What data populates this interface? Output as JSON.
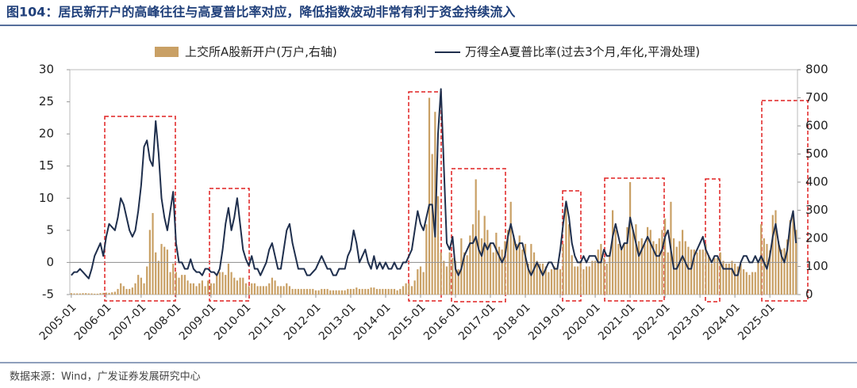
{
  "chart_data": {
    "type": "combo",
    "title": "图104：居民新开户的高峰往往与高夏普比率对应，降低指数波动非常有利于资金持续流入",
    "categories": [
      "2005-01",
      null,
      null,
      null,
      null,
      null,
      null,
      null,
      null,
      null,
      null,
      null,
      "2006-01",
      null,
      null,
      null,
      null,
      null,
      null,
      null,
      null,
      null,
      null,
      null,
      "2007-01",
      null,
      null,
      null,
      null,
      null,
      null,
      null,
      null,
      null,
      null,
      null,
      "2008-01",
      null,
      null,
      null,
      null,
      null,
      null,
      null,
      null,
      null,
      null,
      null,
      "2009-01",
      null,
      null,
      null,
      null,
      null,
      null,
      null,
      null,
      null,
      null,
      null,
      "2010-01",
      null,
      null,
      null,
      null,
      null,
      null,
      null,
      null,
      null,
      null,
      null,
      "2011-01",
      null,
      null,
      null,
      null,
      null,
      null,
      null,
      null,
      null,
      null,
      null,
      "2012-01",
      null,
      null,
      null,
      null,
      null,
      null,
      null,
      null,
      null,
      null,
      null,
      "2013-01",
      null,
      null,
      null,
      null,
      null,
      null,
      null,
      null,
      null,
      null,
      null,
      "2014-01",
      null,
      null,
      null,
      null,
      null,
      null,
      null,
      null,
      null,
      null,
      null,
      "2015-01",
      null,
      null,
      null,
      null,
      null,
      null,
      null,
      null,
      null,
      null,
      null,
      "2016-01",
      null,
      null,
      null,
      null,
      null,
      null,
      null,
      null,
      null,
      null,
      null,
      "2017-01",
      null,
      null,
      null,
      null,
      null,
      null,
      null,
      null,
      null,
      null,
      null,
      "2018-01",
      null,
      null,
      null,
      null,
      null,
      null,
      null,
      null,
      null,
      null,
      null,
      "2019-01",
      null,
      null,
      null,
      null,
      null,
      null,
      null,
      null,
      null,
      null,
      null,
      "2020-01",
      null,
      null,
      null,
      null,
      null,
      null,
      null,
      null,
      null,
      null,
      null,
      "2021-01",
      null,
      null,
      null,
      null,
      null,
      null,
      null,
      null,
      null,
      null,
      null,
      "2022-01",
      null,
      null,
      null,
      null,
      null,
      null,
      null,
      null,
      null,
      null,
      null,
      "2023-01",
      null,
      null,
      null,
      null,
      null,
      null,
      null,
      null,
      null,
      null,
      null,
      "2024-01",
      null,
      null,
      null,
      null,
      null,
      null,
      null,
      null,
      null,
      null,
      null,
      "2025-01",
      null,
      null,
      null,
      null,
      null,
      null,
      null,
      null,
      null
    ],
    "series": [
      {
        "name": "上交所A股新开户(万户,右轴)",
        "type": "bar",
        "axis": "y2",
        "color": "#c9a065",
        "values": [
          5,
          4,
          4,
          4,
          5,
          5,
          4,
          4,
          3,
          3,
          5,
          6,
          7,
          6,
          8,
          10,
          20,
          40,
          30,
          20,
          20,
          25,
          40,
          70,
          60,
          40,
          100,
          230,
          290,
          150,
          120,
          180,
          170,
          160,
          80,
          110,
          80,
          60,
          70,
          70,
          50,
          40,
          40,
          30,
          40,
          50,
          30,
          50,
          40,
          40,
          70,
          80,
          80,
          70,
          110,
          80,
          60,
          50,
          60,
          60,
          40,
          30,
          40,
          40,
          30,
          30,
          30,
          30,
          40,
          60,
          50,
          30,
          30,
          30,
          40,
          30,
          20,
          20,
          20,
          20,
          20,
          20,
          20,
          20,
          15,
          15,
          20,
          20,
          20,
          15,
          15,
          15,
          15,
          15,
          15,
          20,
          20,
          20,
          25,
          20,
          20,
          20,
          20,
          25,
          25,
          20,
          20,
          20,
          20,
          20,
          20,
          20,
          15,
          20,
          30,
          40,
          40,
          30,
          50,
          90,
          100,
          80,
          250,
          700,
          500,
          650,
          350,
          150,
          120,
          100,
          150,
          130,
          120,
          90,
          200,
          150,
          140,
          210,
          250,
          410,
          300,
          200,
          280,
          230,
          180,
          150,
          220,
          170,
          160,
          190,
          230,
          330,
          210,
          180,
          210,
          160,
          180,
          110,
          180,
          150,
          120,
          110,
          110,
          100,
          80,
          90,
          100,
          90,
          90,
          180,
          330,
          250,
          140,
          100,
          100,
          120,
          90,
          100,
          100,
          120,
          120,
          160,
          180,
          130,
          110,
          150,
          300,
          230,
          180,
          160,
          180,
          240,
          400,
          230,
          250,
          190,
          200,
          180,
          240,
          230,
          190,
          180,
          200,
          230,
          270,
          150,
          330,
          200,
          170,
          190,
          230,
          190,
          170,
          160,
          160,
          150,
          160,
          160,
          180,
          140,
          110,
          130,
          130,
          150,
          120,
          110,
          110,
          120,
          110,
          100,
          110,
          90,
          80,
          70,
          80,
          80,
          120,
          250,
          200,
          180,
          157,
          283,
          300,
          190,
          160,
          165,
          196,
          265,
          290,
          230
        ]
      },
      {
        "name": "万得全A夏普比率(过去3个月,年化,平滑处理)",
        "type": "line",
        "color": "#1f2f4d",
        "values": [
          -2,
          -1.5,
          -1.5,
          -1,
          -1.5,
          -2,
          -2.5,
          -1,
          1,
          2,
          3,
          1,
          4,
          6,
          5.5,
          5,
          7,
          10,
          9,
          7,
          5,
          4,
          5,
          8,
          12,
          18,
          19,
          16,
          15,
          22,
          17,
          10,
          7,
          5,
          8,
          11,
          3,
          0,
          0,
          -1,
          -1,
          0.5,
          -1,
          -1.5,
          -1.5,
          -2,
          -1,
          -1,
          -1.5,
          -1.5,
          -2,
          -1,
          2,
          6,
          8.5,
          5,
          7,
          10,
          6,
          2,
          0.5,
          -0.5,
          1,
          -1,
          -1,
          -2,
          -1,
          0,
          2,
          3,
          1,
          -1,
          -1,
          2,
          5,
          6,
          3,
          1,
          -1,
          -1,
          -1,
          -2,
          -2,
          -1.5,
          -1,
          0,
          1,
          0,
          -1,
          -1,
          -2,
          -2,
          -1,
          -1,
          -1,
          1,
          2,
          5,
          3,
          0,
          1,
          2,
          0,
          -1,
          1,
          -1,
          0,
          -1,
          0,
          -1,
          -1,
          0,
          -1,
          -1,
          0,
          0,
          1,
          2,
          5,
          8,
          6,
          5,
          7,
          9,
          9,
          4,
          20,
          27,
          15,
          3,
          2,
          4,
          -1,
          -2,
          -1,
          1,
          2,
          3,
          3,
          4,
          2,
          1,
          3,
          2,
          3,
          3,
          2,
          1,
          0,
          1,
          4,
          6,
          4,
          2,
          3,
          3,
          1,
          -1,
          -2,
          -1,
          0,
          -1,
          -2,
          -1,
          0,
          0,
          -1,
          -1,
          2,
          6,
          9.5,
          7,
          3,
          1,
          0,
          0,
          1,
          0,
          1,
          1,
          1,
          0,
          0,
          2,
          1,
          1,
          4,
          6,
          4,
          2,
          3,
          3,
          7,
          5,
          3,
          1,
          2,
          3,
          4,
          3,
          2,
          1,
          1,
          2,
          4,
          5,
          2,
          -1,
          -1,
          0,
          1,
          0,
          -1,
          -1,
          1,
          2,
          3,
          4,
          2,
          1,
          0,
          1,
          1,
          0,
          -1,
          -1,
          -1,
          -1,
          -2,
          -2,
          0,
          1,
          1,
          0,
          0,
          1,
          0,
          1,
          0,
          -1,
          1,
          4,
          6,
          3,
          1,
          0,
          2,
          6,
          8,
          3
        ]
      }
    ],
    "ylim": [
      -5,
      30
    ],
    "yticks": [
      -5,
      0,
      5,
      10,
      15,
      20,
      25,
      30
    ],
    "y2lim": [
      0,
      800
    ],
    "y2ticks": [
      0,
      100,
      200,
      300,
      400,
      500,
      600,
      700,
      800
    ]
  },
  "source": "数据来源：Wind，广发证券发展研究中心"
}
